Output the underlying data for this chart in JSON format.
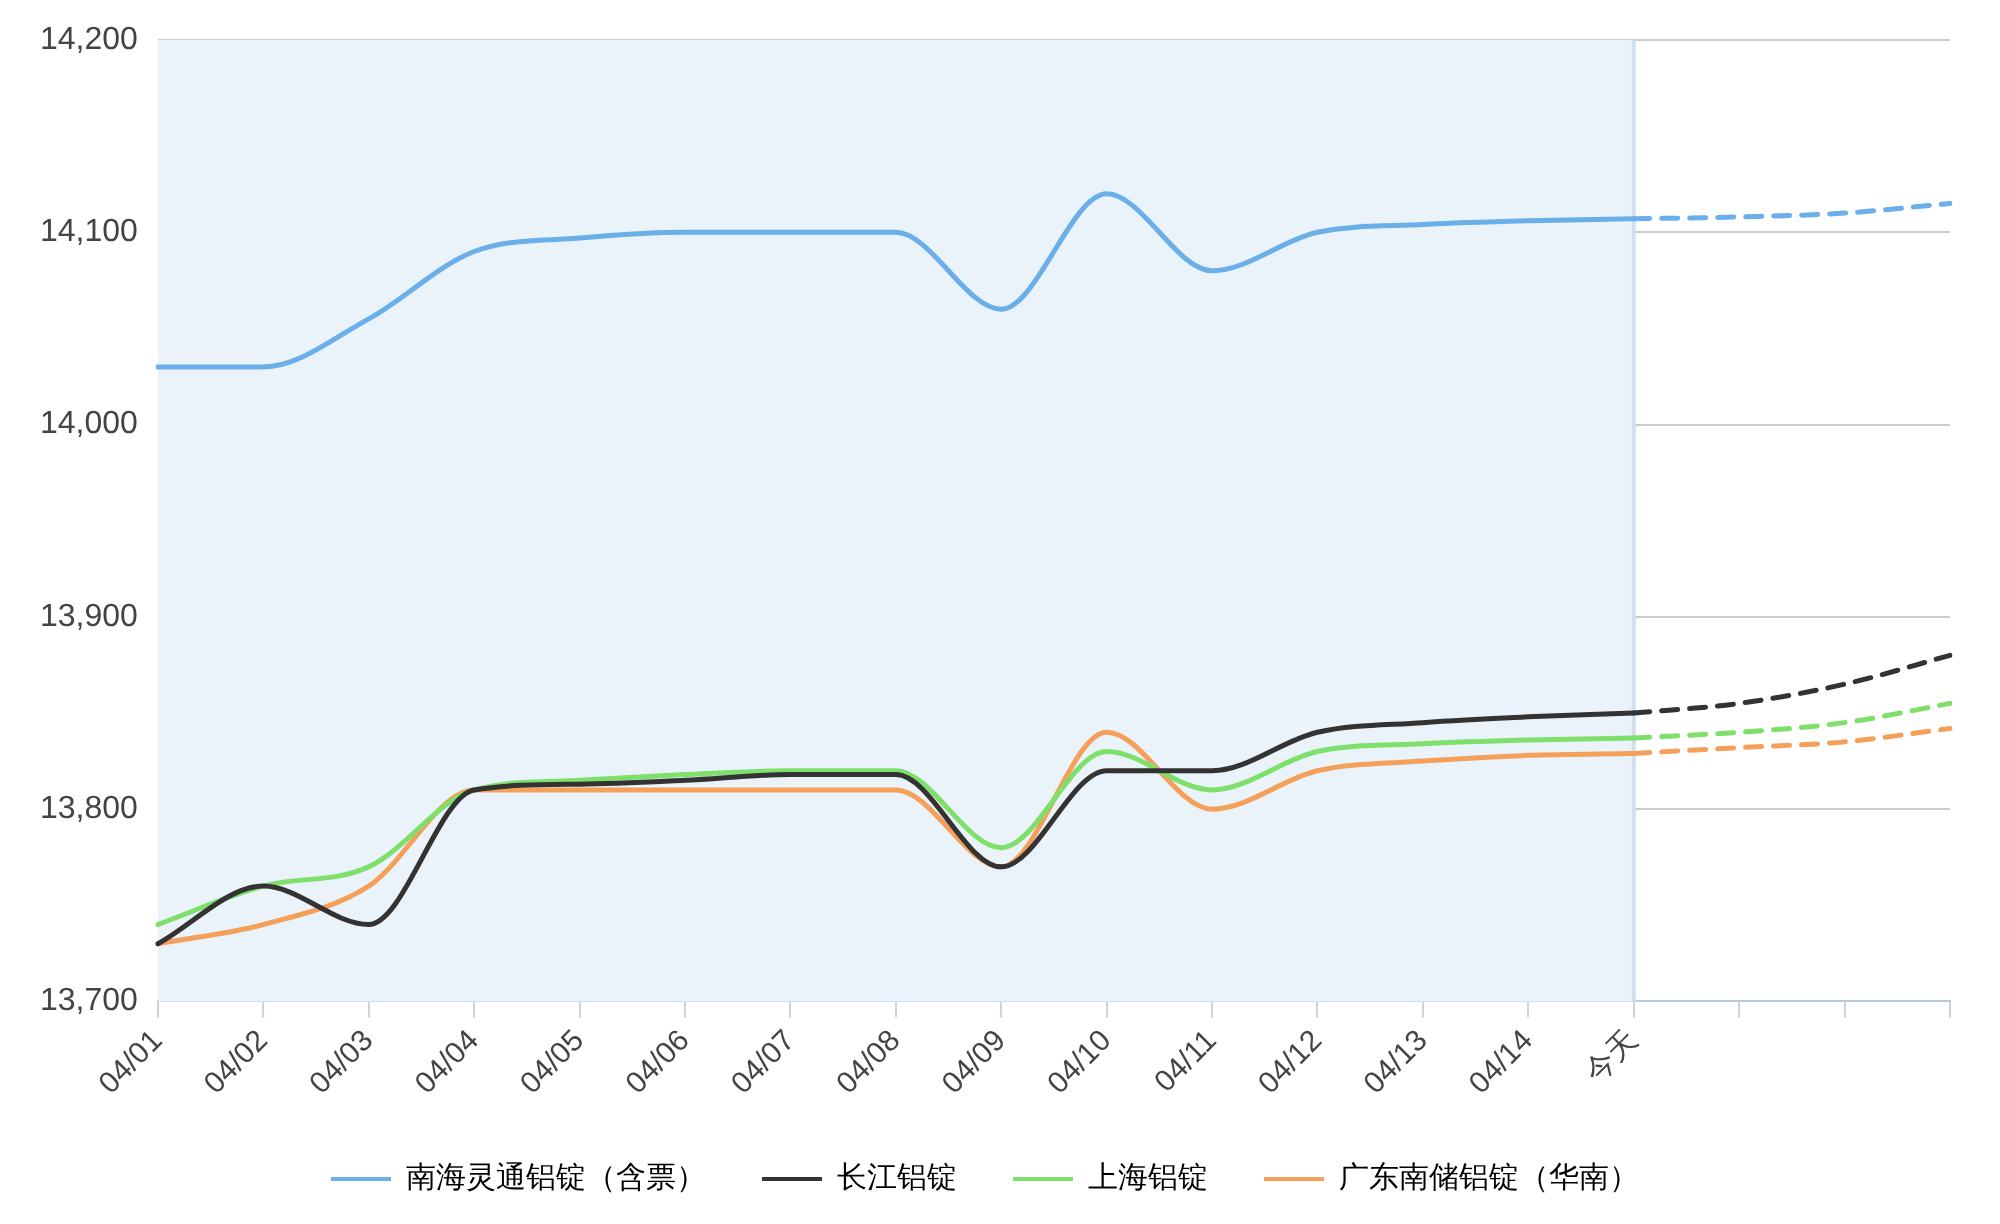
{
  "chart_data": {
    "type": "line",
    "categories": [
      "04/01",
      "04/02",
      "04/03",
      "04/04",
      "04/05",
      "04/06",
      "04/07",
      "04/08",
      "04/09",
      "04/10",
      "04/11",
      "04/12",
      "04/13",
      "04/14",
      "今天",
      null,
      null,
      null
    ],
    "series": [
      {
        "name": "南海灵通铝锭（含票）",
        "color": "#6aaeea",
        "values": [
          14030,
          14030,
          14055,
          14090,
          14097,
          14100,
          14100,
          14100,
          14060,
          14120,
          14080,
          14100,
          14104,
          14106,
          14107,
          null,
          null,
          null
        ]
      },
      {
        "name": "长江铝锭",
        "color": "#333333",
        "values": [
          13730,
          13760,
          13740,
          13810,
          13813,
          13815,
          13818,
          13818,
          13770,
          13820,
          13820,
          13840,
          13845,
          13848,
          13850,
          null,
          null,
          null
        ]
      },
      {
        "name": "上海铝锭",
        "color": "#7ee06a",
        "values": [
          13740,
          13760,
          13770,
          13810,
          13815,
          13818,
          13820,
          13820,
          13780,
          13830,
          13810,
          13830,
          13834,
          13836,
          13837,
          null,
          null,
          null
        ]
      },
      {
        "name": "广东南储铝锭（华南）",
        "color": "#f5a05a",
        "values": [
          13730,
          13740,
          13760,
          13810,
          13810,
          13810,
          13810,
          13810,
          13770,
          13840,
          13800,
          13820,
          13825,
          13828,
          13829,
          null,
          null,
          null
        ]
      },
      {
        "color": "#6aaeea",
        "line_style": "dashed",
        "values": [
          null,
          null,
          null,
          null,
          null,
          null,
          null,
          null,
          null,
          null,
          null,
          null,
          null,
          null,
          14107,
          14108,
          14110,
          14115
        ]
      },
      {
        "color": "#333333",
        "line_style": "dashed",
        "values": [
          null,
          null,
          null,
          null,
          null,
          null,
          null,
          null,
          null,
          null,
          null,
          null,
          null,
          null,
          13850,
          13855,
          13865,
          13880
        ]
      },
      {
        "color": "#7ee06a",
        "line_style": "dashed",
        "values": [
          null,
          null,
          null,
          null,
          null,
          null,
          null,
          null,
          null,
          null,
          null,
          null,
          null,
          null,
          13837,
          13840,
          13845,
          13855
        ]
      },
      {
        "color": "#f5a05a",
        "line_style": "dashed",
        "values": [
          null,
          null,
          null,
          null,
          null,
          null,
          null,
          null,
          null,
          null,
          null,
          null,
          null,
          null,
          13829,
          13832,
          13835,
          13842
        ]
      }
    ],
    "ylim": [
      13700,
      14200
    ],
    "yticks": [
      {
        "value": 13700,
        "label": "13,700"
      },
      {
        "value": 13800,
        "label": "13,800"
      },
      {
        "value": 13900,
        "label": "13,900"
      },
      {
        "value": 14000,
        "label": "14,000"
      },
      {
        "value": 14100,
        "label": "14,100"
      },
      {
        "value": 14200,
        "label": "14,200"
      }
    ],
    "bands": [
      {
        "axis": "x",
        "from": "04/01",
        "to": "今天",
        "color": "#eaf3fa"
      }
    ],
    "ref_lines": [
      {
        "axis": "x",
        "value": "今天",
        "color": "#cfe0ee"
      }
    ],
    "grid": "y",
    "legend": "bottom",
    "marker": "none",
    "line_style": "solid"
  }
}
